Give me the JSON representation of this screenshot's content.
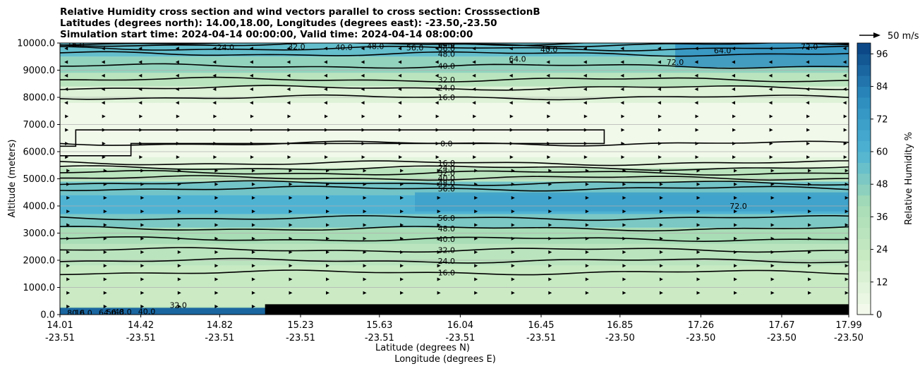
{
  "chart_data": {
    "type": "contour-cross-section",
    "title_lines": [
      "Relative Humidity cross section and wind vectors parallel to cross section: CrosssectionB",
      "Latitudes (degrees north): 14.00,18.00, Longitudes (degrees east): -23.50,-23.50",
      "Simulation start time: 2024-04-14 00:00:00, Valid time: 2024-04-14 08:00:00"
    ],
    "ylabel": "Altitude (meters)",
    "xlabel_lat": "Latitude (degrees N)",
    "xlabel_lon": "Longitude (degrees E)",
    "ylim": [
      0,
      10000
    ],
    "yticks": [
      "0.0",
      "1000.0",
      "2000.0",
      "3000.0",
      "4000.0",
      "5000.0",
      "6000.0",
      "7000.0",
      "8000.0",
      "9000.0",
      "10000.0"
    ],
    "xticks": [
      {
        "lat": "14.01",
        "lon": "-23.51",
        "pos": 0.0
      },
      {
        "lat": "14.42",
        "lon": "-23.51",
        "pos": 0.1025
      },
      {
        "lat": "14.82",
        "lon": "-23.51",
        "pos": 0.2025
      },
      {
        "lat": "15.23",
        "lon": "-23.51",
        "pos": 0.305
      },
      {
        "lat": "15.63",
        "lon": "-23.51",
        "pos": 0.405
      },
      {
        "lat": "16.04",
        "lon": "-23.51",
        "pos": 0.5075
      },
      {
        "lat": "16.45",
        "lon": "-23.51",
        "pos": 0.61
      },
      {
        "lat": "16.85",
        "lon": "-23.50",
        "pos": 0.71
      },
      {
        "lat": "17.26",
        "lon": "-23.50",
        "pos": 0.8125
      },
      {
        "lat": "17.67",
        "lon": "-23.50",
        "pos": 0.915
      },
      {
        "lat": "17.99",
        "lon": "-23.50",
        "pos": 1.0
      }
    ],
    "colorbar": {
      "label": "Relative Humidity %",
      "min": 0,
      "max": 100,
      "step": 4,
      "ticks": [
        "0",
        "12",
        "24",
        "36",
        "48",
        "60",
        "72",
        "84",
        "96"
      ]
    },
    "contour_levels": [
      {
        "label": "0.0",
        "alt": 6300
      },
      {
        "label": "16.0",
        "alt": 1550
      },
      {
        "label": "24.0",
        "alt": 1980
      },
      {
        "label": "32.0",
        "alt": 2380
      },
      {
        "label": "40.0",
        "alt": 2780
      },
      {
        "label": "48.0",
        "alt": 3170
      },
      {
        "label": "56.0",
        "alt": 3560
      },
      {
        "label": "56.0",
        "alt": 4640
      },
      {
        "label": "48.0",
        "alt": 4840
      },
      {
        "label": "40.0",
        "alt": 5030
      },
      {
        "label": "32.0",
        "alt": 5220
      },
      {
        "label": "24.0",
        "alt": 5400
      },
      {
        "label": "16.0",
        "alt": 5580
      },
      {
        "label": "16.0",
        "alt": 8000
      },
      {
        "label": "24.0",
        "alt": 8350
      },
      {
        "label": "32.0",
        "alt": 8650
      },
      {
        "label": "40.0",
        "alt": 9150
      },
      {
        "label": "48.0",
        "alt": 9600
      },
      {
        "label": "56.0",
        "alt": 9800
      },
      {
        "label": "64.0",
        "alt": 9950
      },
      {
        "label": "72.0",
        "alt": 10000
      }
    ],
    "extra_labels": [
      "16.0",
      "24.0",
      "32.0",
      "40.0",
      "48.0",
      "56.0",
      "64.0",
      "72.0",
      "40.0",
      "64.0",
      "72.0",
      "16.0",
      "32.0",
      "40.0",
      "48.0",
      "56.0",
      "64.0",
      "72.0",
      "80.0"
    ],
    "wind_key": {
      "label": "50 m/s"
    }
  },
  "colors": {
    "axis": "#000000",
    "grid": "#b0b0b0",
    "contour": "#000000"
  }
}
